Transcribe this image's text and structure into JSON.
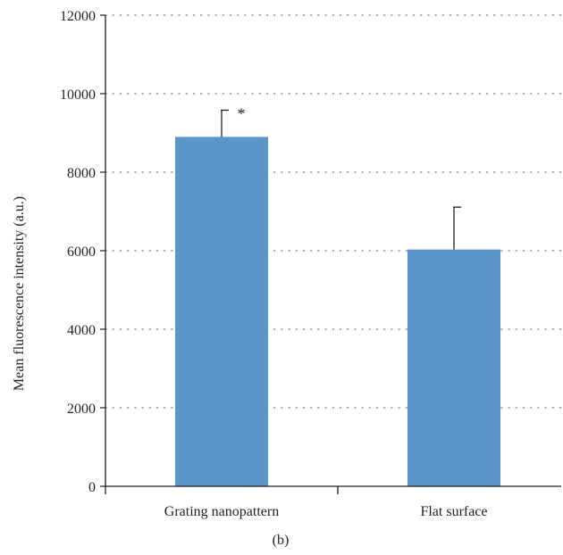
{
  "chart_data": {
    "type": "bar",
    "title": "",
    "xlabel": "",
    "ylabel": "Mean fluorescence intensity (a.u.)",
    "ylim": [
      0,
      12000
    ],
    "yticks": [
      0,
      2000,
      4000,
      6000,
      8000,
      10000,
      12000
    ],
    "ytick_labels": [
      "0",
      "2000",
      "4000",
      "6000",
      "8000",
      "10000",
      "12000"
    ],
    "grid": "horizontal dotted",
    "categories": [
      "Grating nanopattern",
      "Flat surface"
    ],
    "values": [
      8900,
      6030
    ],
    "error_upper": [
      680,
      1080
    ],
    "significance": [
      "*",
      ""
    ],
    "bar_color": "#5b96cb",
    "axis_color": "#231f20",
    "grid_color": "#7a7a7a"
  },
  "panel_label": "(b)"
}
